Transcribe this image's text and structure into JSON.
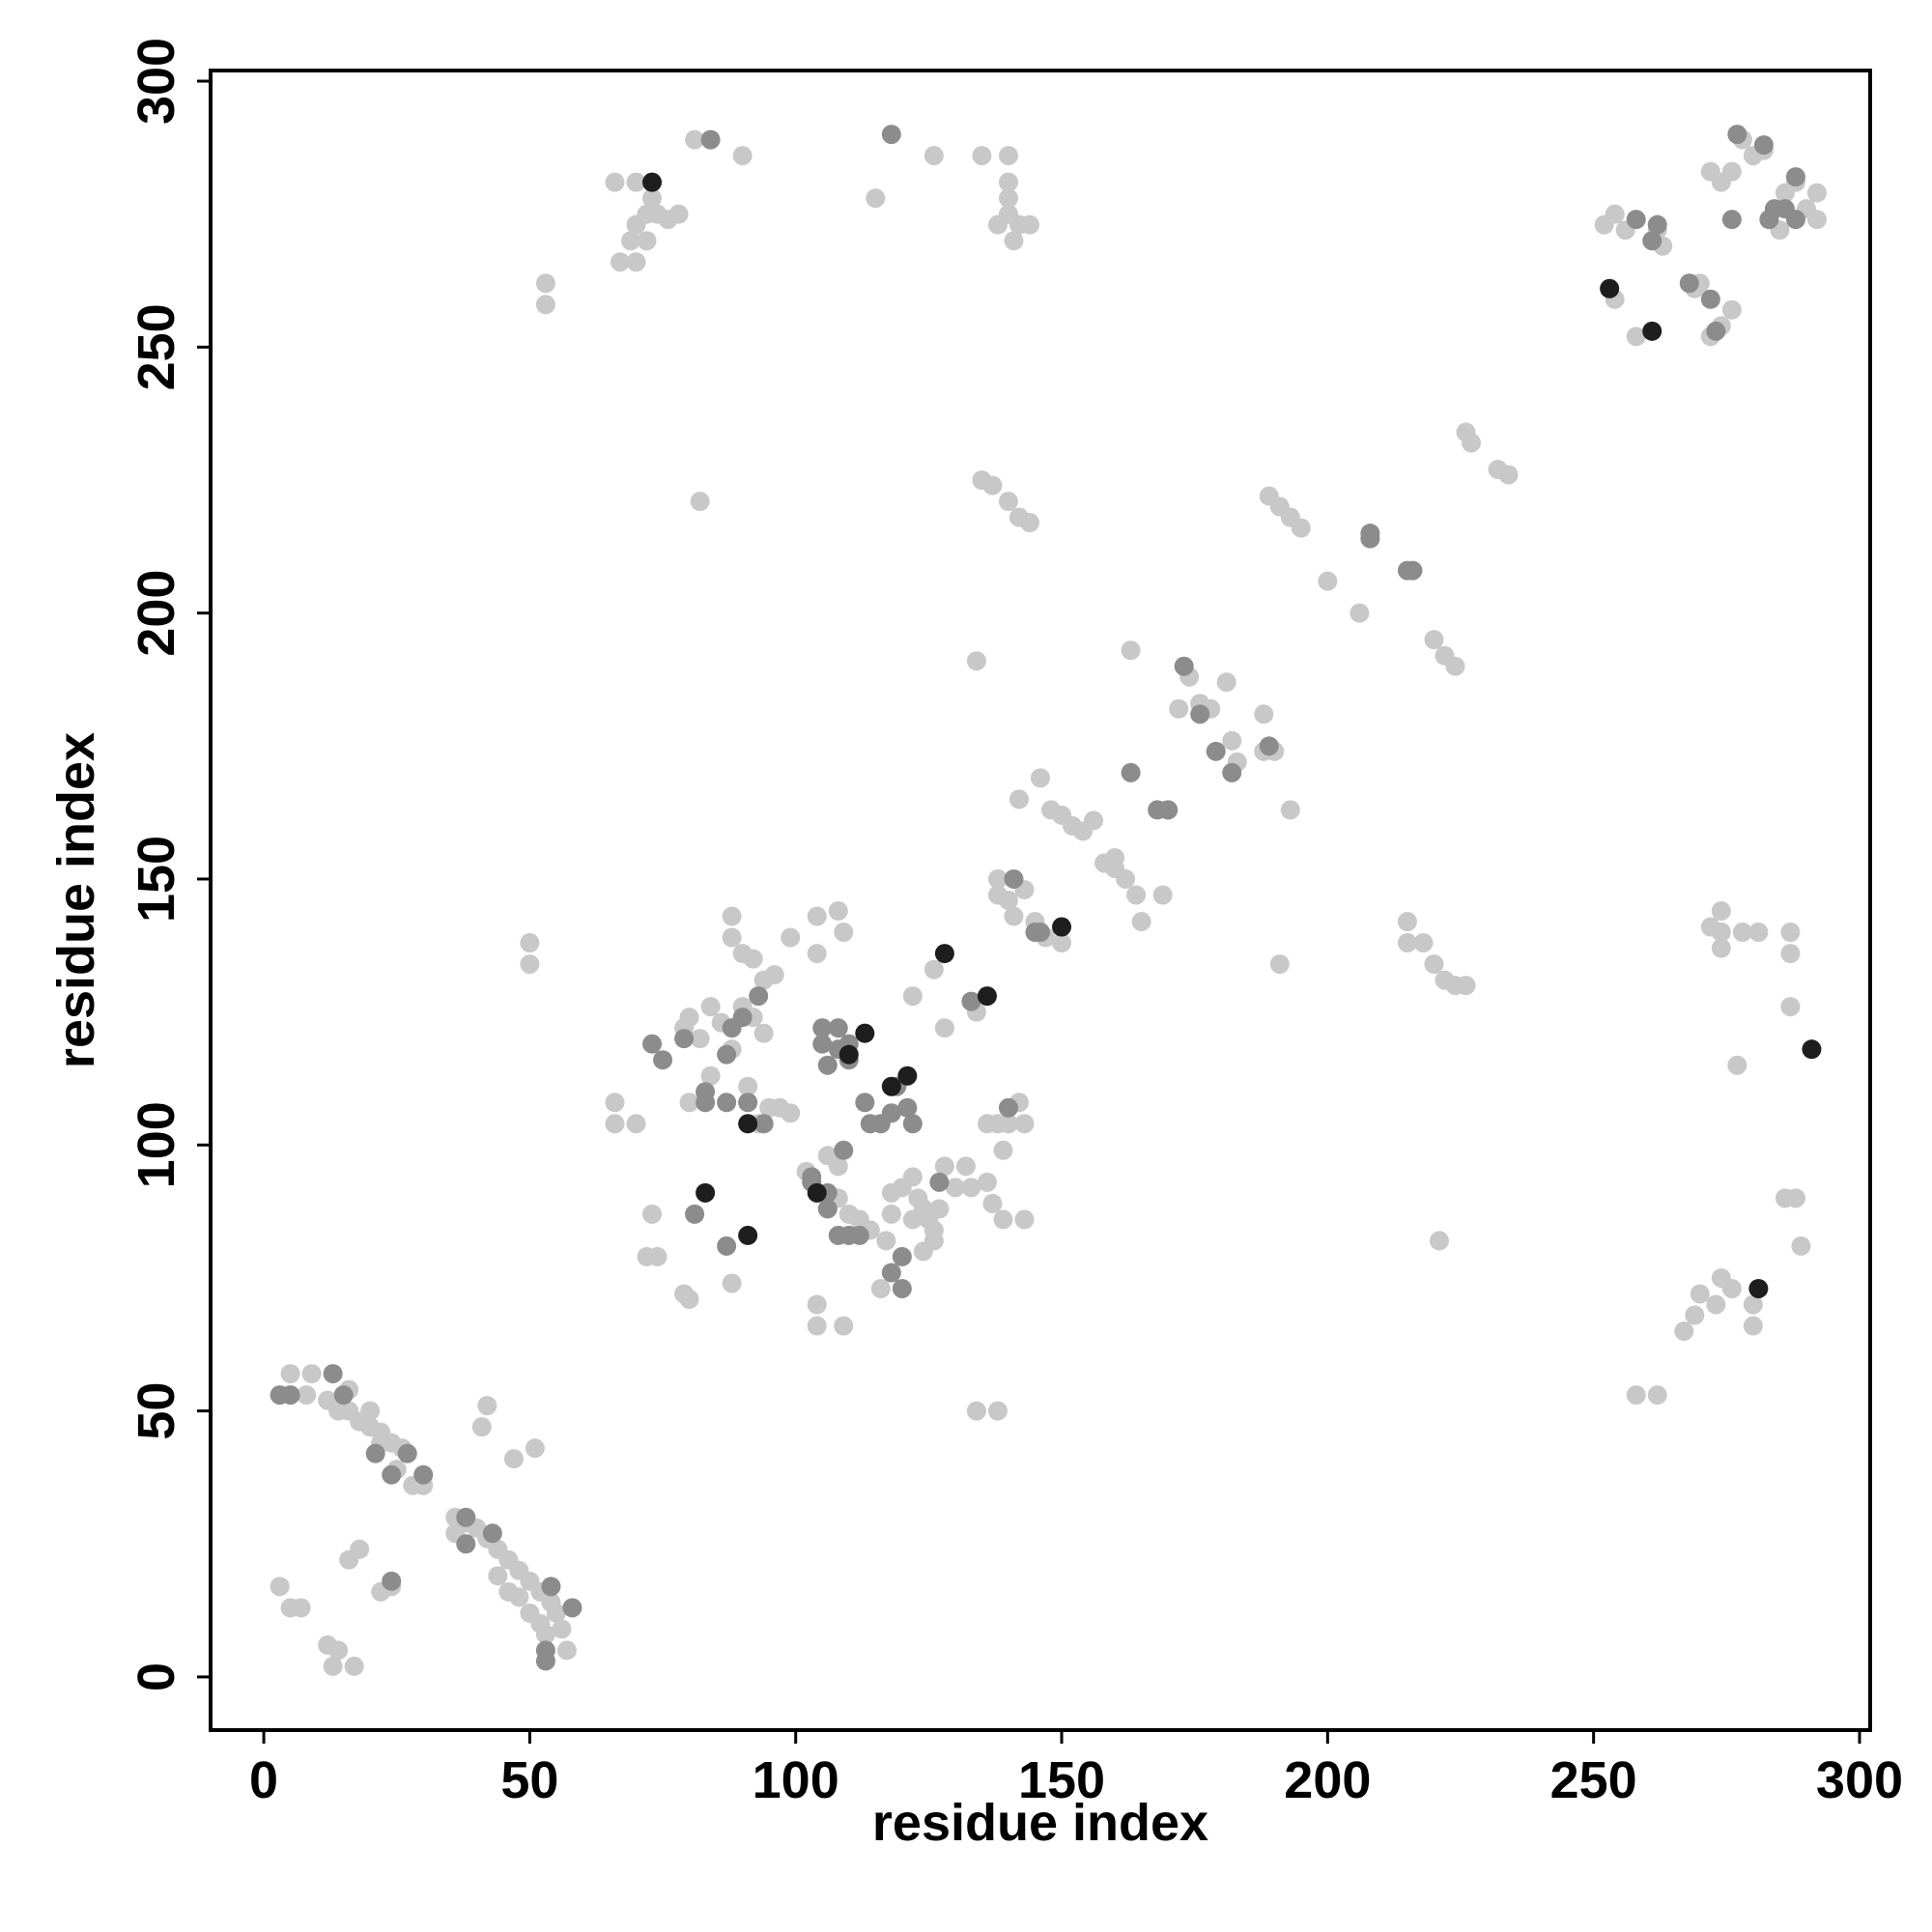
{
  "chart_data": {
    "type": "scatter",
    "xlabel": "residue index",
    "ylabel": "residue index",
    "xlim": [
      -10,
      302
    ],
    "ylim": [
      -10,
      302
    ],
    "xticks": [
      0,
      50,
      100,
      150,
      200,
      250,
      300
    ],
    "yticks": [
      0,
      50,
      100,
      150,
      200,
      250,
      300
    ],
    "series": [
      {
        "color": "#c8c8c8",
        "x": [
          5,
          9,
          8,
          12,
          16,
          16,
          18,
          20,
          22,
          24,
          26,
          28,
          30,
          36,
          38,
          40,
          42,
          44,
          46,
          48,
          50,
          52,
          54,
          55,
          56,
          57,
          53,
          17,
          13,
          12,
          14,
          5,
          3,
          7,
          18,
          16,
          22,
          24,
          42,
          41,
          47,
          51,
          52,
          50,
          48,
          46,
          44,
          36,
          20,
          14,
          22,
          25,
          66,
          66,
          70,
          73,
          72,
          74,
          79,
          80,
          79,
          80,
          82,
          84,
          86,
          88,
          90,
          92,
          94,
          88,
          88,
          90,
          92,
          94,
          96,
          95,
          93,
          97,
          99,
          91,
          84,
          80,
          88,
          99,
          102,
          104,
          104,
          109,
          104,
          104,
          108,
          109,
          106,
          108,
          108,
          110,
          112,
          114,
          116,
          117,
          118,
          118,
          120,
          122,
          123,
          124,
          125,
          126,
          122,
          124,
          126,
          127,
          128,
          130,
          132,
          133,
          136,
          137,
          139,
          139,
          143,
          122,
          126,
          128,
          134,
          136,
          138,
          140,
          142,
          143,
          138,
          138,
          140,
          141,
          143,
          147,
          145,
          150,
          142,
          146,
          148,
          150,
          152,
          154,
          156,
          158,
          160,
          162,
          164,
          160,
          165,
          169,
          170,
          163,
          172,
          174,
          176,
          178,
          181,
          182,
          183,
          188,
          188,
          190,
          193,
          191,
          189,
          191,
          193,
          195,
          200,
          206,
          220,
          222,
          224,
          226,
          227,
          232,
          234,
          135,
          137,
          140,
          142,
          144,
          82,
          53,
          53,
          50,
          50,
          134,
          134,
          138,
          67,
          69,
          70,
          72,
          74,
          76,
          78,
          70,
          72,
          66,
          70,
          73,
          81,
          90,
          126,
          135,
          140,
          140,
          140,
          140,
          138,
          142,
          144,
          141,
          115,
          215,
          215,
          218,
          220,
          222,
          224,
          226,
          221,
          258,
          262,
          267,
          269,
          270,
          273,
          274,
          276,
          280,
          280,
          286,
          288,
          289,
          287,
          287,
          287,
          277,
          274,
          274,
          272,
          278,
          281,
          274,
          252,
          254,
          256,
          258,
          254,
          262,
          263,
          269,
          270,
          272,
          274,
          276,
          272,
          274,
          276,
          278,
          280,
          282,
          283,
          285,
          286,
          288,
          290,
          292,
          292
        ],
        "y": [
          57,
          57,
          53,
          52,
          54,
          50,
          48,
          47,
          46,
          44,
          43,
          36,
          36,
          30,
          29,
          28,
          26,
          24,
          22,
          20,
          18,
          16,
          14,
          12,
          9,
          5,
          8,
          2,
          2,
          6,
          5,
          13,
          17,
          13,
          24,
          22,
          16,
          17,
          51,
          47,
          41,
          43,
          10,
          12,
          15,
          16,
          19,
          27,
          50,
          50,
          44,
          39,
          108,
          104,
          104,
          87,
          79,
          79,
          72,
          71,
          122,
          124,
          120,
          126,
          123,
          118,
          126,
          124,
          121,
          143,
          139,
          136,
          135,
          131,
          132,
          107,
          104,
          107,
          106,
          111,
          113,
          108,
          74,
          139,
          95,
          70,
          66,
          66,
          136,
          143,
          144,
          140,
          98,
          96,
          90,
          87,
          86,
          84,
          73,
          82,
          87,
          91,
          92,
          94,
          90,
          88,
          86,
          84,
          86,
          80,
          82,
          88,
          96,
          92,
          96,
          92,
          93,
          89,
          86,
          99,
          86,
          128,
          133,
          122,
          125,
          104,
          104,
          104,
          108,
          104,
          147,
          150,
          146,
          143,
          148,
          139,
          142,
          138,
          165,
          169,
          163,
          162,
          160,
          159,
          161,
          153,
          152,
          150,
          147,
          154,
          142,
          147,
          163,
          193,
          182,
          188,
          183,
          182,
          187,
          176,
          172,
          181,
          174,
          174,
          163,
          134,
          222,
          220,
          218,
          216,
          206,
          200,
          195,
          192,
          190,
          234,
          232,
          227,
          226,
          225,
          224,
          221,
          218,
          217,
          221,
          262,
          258,
          138,
          134,
          191,
          50,
          50,
          266,
          270,
          273,
          275,
          275,
          274,
          275,
          266,
          270,
          281,
          281,
          278,
          289,
          286,
          286,
          286,
          286,
          281,
          278,
          275,
          273,
          273,
          273,
          270,
          278,
          142,
          138,
          138,
          134,
          131,
          130,
          130,
          82,
          53,
          53,
          65,
          68,
          72,
          70,
          75,
          73,
          70,
          66,
          90,
          90,
          81,
          126,
          136,
          140,
          115,
          144,
          140,
          141,
          140,
          140,
          137,
          273,
          275,
          272,
          252,
          259,
          272,
          269,
          261,
          262,
          252,
          254,
          257,
          283,
          281,
          283,
          289,
          286,
          287,
          274,
          272,
          279,
          281,
          276,
          279,
          274
        ]
      },
      {
        "color": "#8c8c8c",
        "x": [
          3,
          5,
          13,
          15,
          27,
          24,
          30,
          38,
          38,
          43,
          53,
          53,
          58,
          54,
          24,
          21,
          73,
          75,
          79,
          83,
          83,
          87,
          87,
          88,
          91,
          90,
          93,
          94,
          103,
          105,
          105,
          106,
          108,
          108,
          110,
          110,
          113,
          114,
          116,
          118,
          119,
          122,
          121,
          106,
          106,
          108,
          110,
          118,
          120,
          120,
          112,
          127,
          133,
          140,
          141,
          146,
          145,
          163,
          168,
          170,
          173,
          176,
          179,
          182,
          189,
          208,
          208,
          215,
          216,
          84,
          118,
          87,
          81,
          109,
          103,
          258,
          261,
          262,
          268,
          272,
          273,
          276,
          277,
          282,
          288,
          283,
          284,
          286,
          288
        ],
        "y": [
          53,
          53,
          57,
          53,
          42,
          38,
          38,
          30,
          25,
          27,
          5,
          3,
          13,
          17,
          18,
          42,
          119,
          116,
          120,
          110,
          108,
          117,
          108,
          122,
          108,
          124,
          128,
          104,
          94,
          119,
          122,
          115,
          118,
          122,
          116,
          119,
          108,
          104,
          104,
          106,
          111,
          104,
          107,
          88,
          91,
          83,
          83,
          76,
          79,
          73,
          83,
          93,
          127,
          107,
          150,
          140,
          140,
          170,
          163,
          163,
          190,
          181,
          174,
          170,
          175,
          214,
          215,
          208,
          208,
          289,
          290,
          81,
          87,
          99,
          93,
          274,
          270,
          273,
          262,
          259,
          253,
          274,
          290,
          288,
          282,
          274,
          276,
          276,
          274
        ]
      },
      {
        "color": "#1e1e1e",
        "x": [
          73,
          83,
          91,
          91,
          104,
          110,
          113,
          118,
          121,
          128,
          136,
          150,
          253,
          261,
          281,
          291
        ],
        "y": [
          281,
          91,
          83,
          104,
          91,
          117,
          121,
          111,
          113,
          136,
          128,
          141,
          261,
          253,
          73,
          118
        ]
      }
    ]
  }
}
